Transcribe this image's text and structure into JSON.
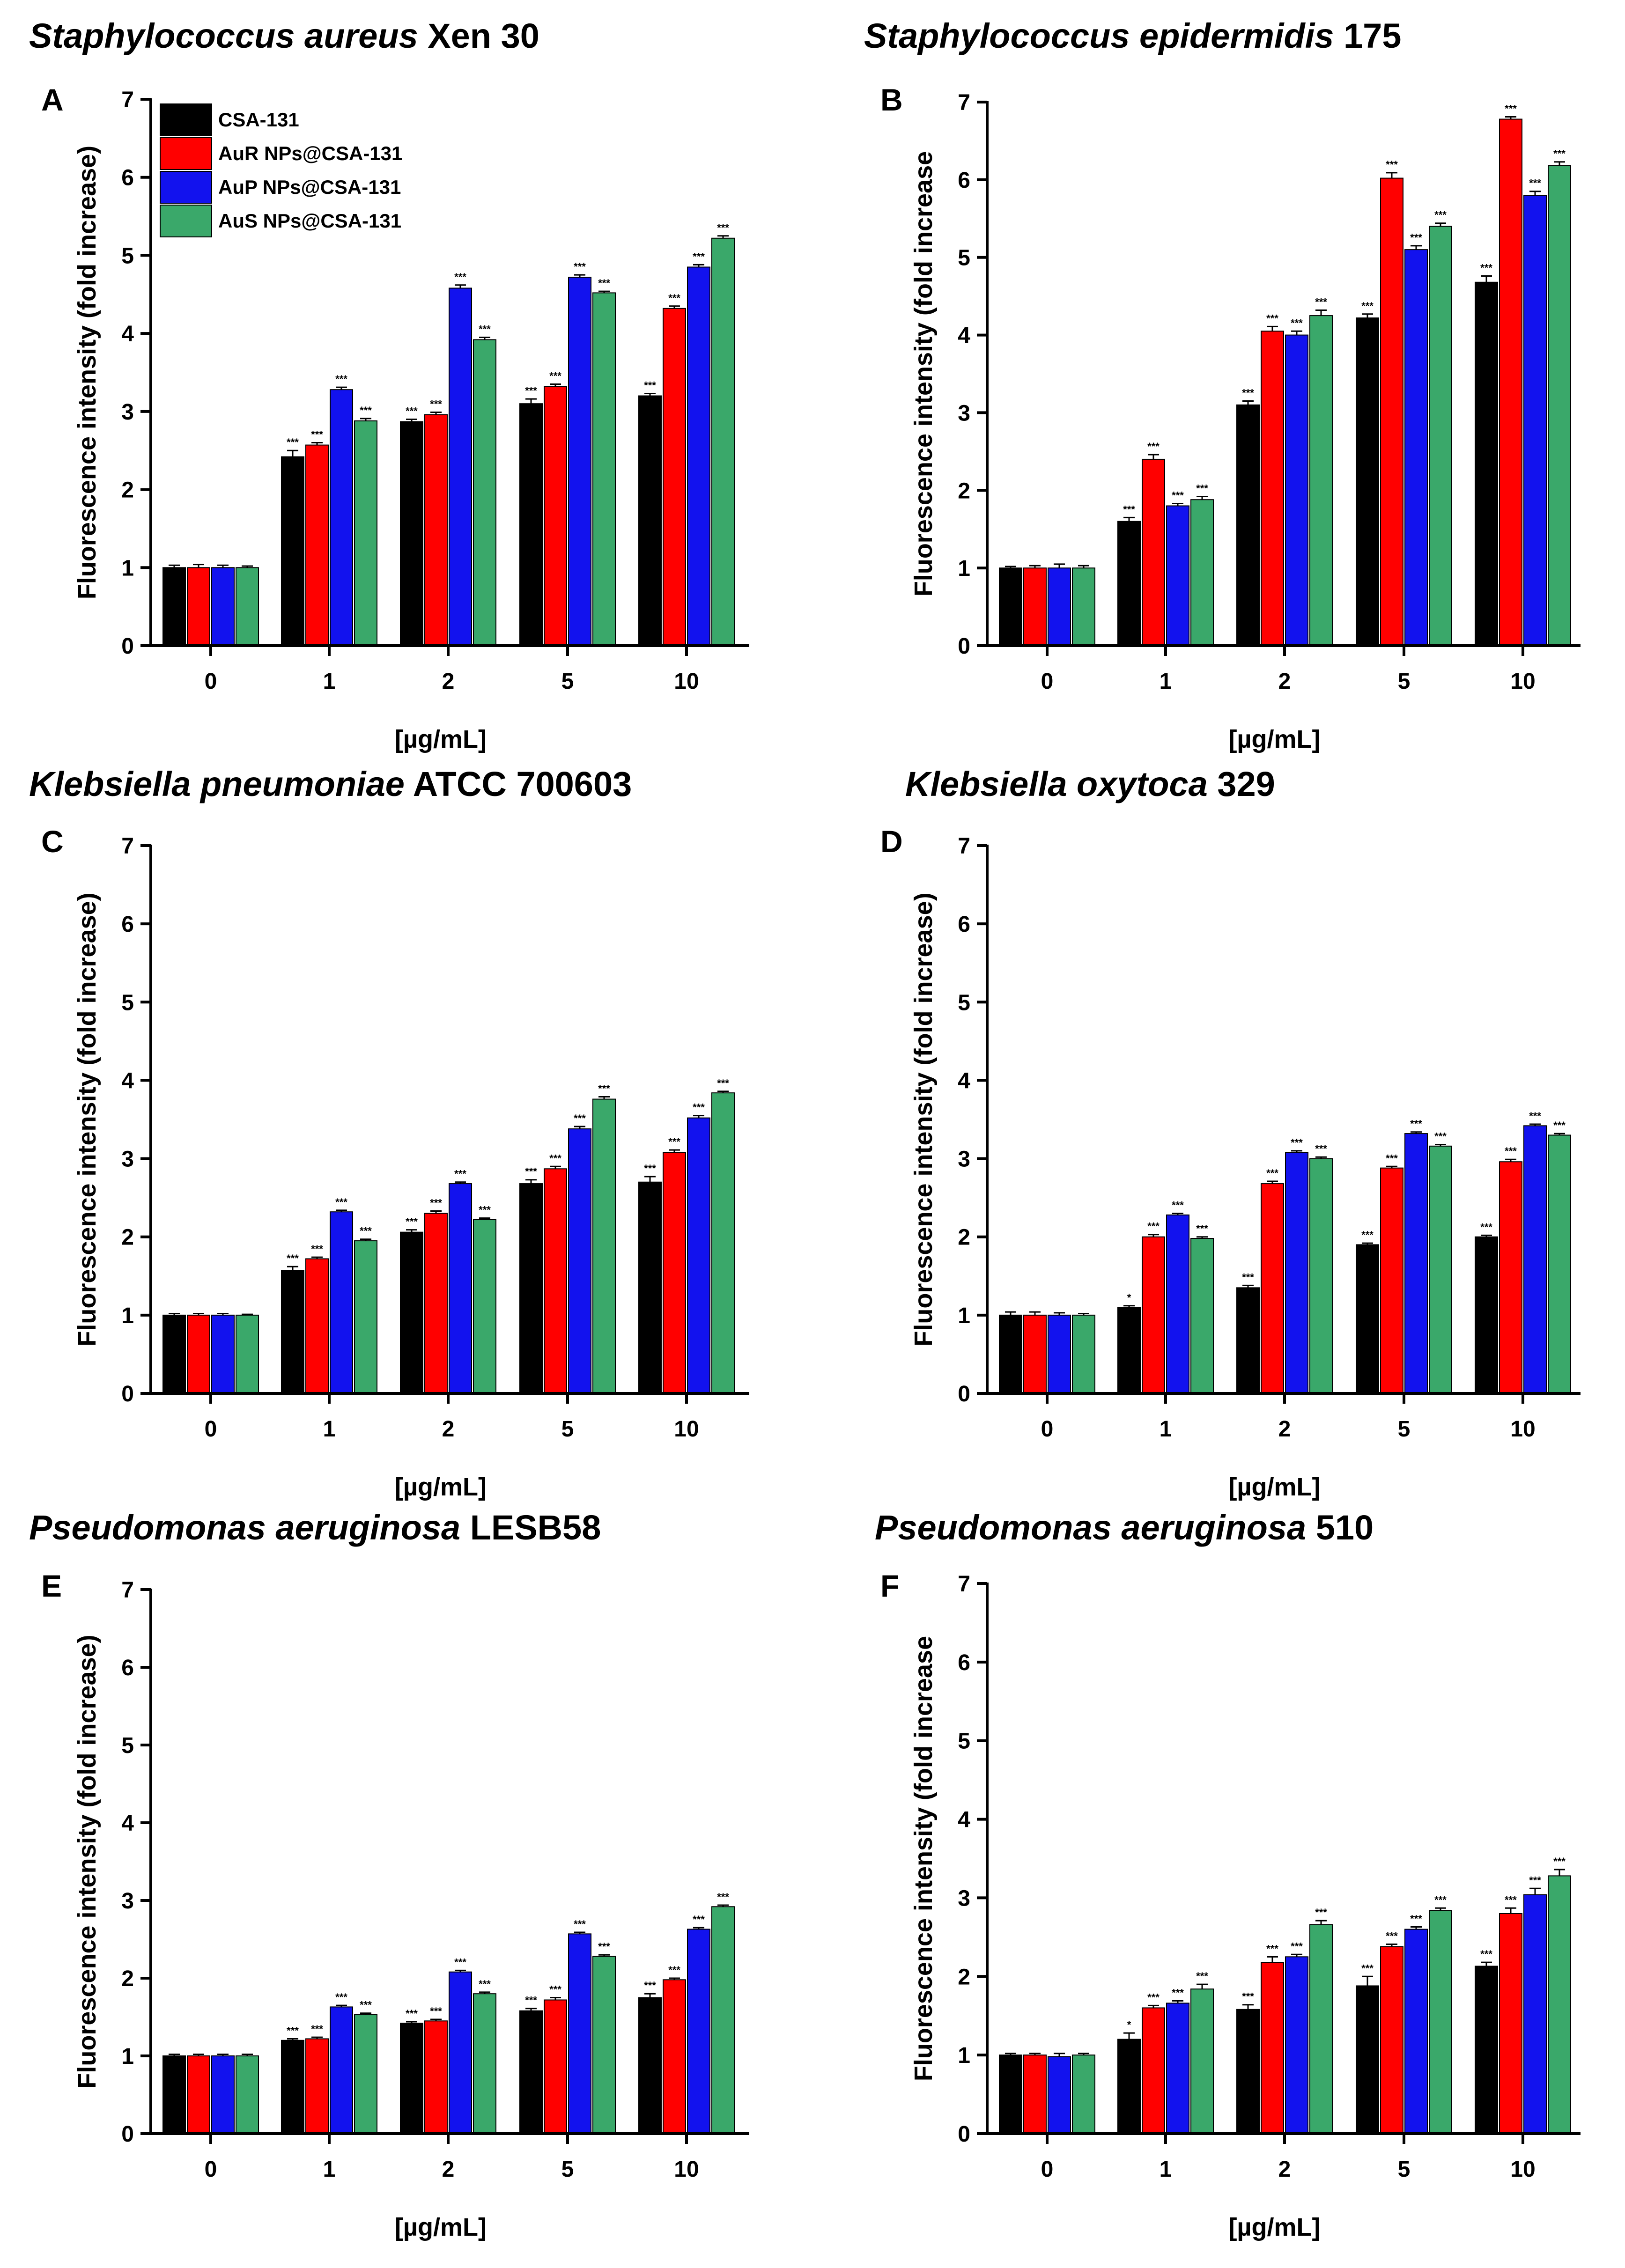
{
  "figure": {
    "legend": [
      "CSA-131",
      "AuR NPs@CSA-131",
      "AuP NPs@CSA-131",
      "AuS NPs@CSA-131"
    ],
    "series_colors": [
      "#000000",
      "#ff0000",
      "#1212ee",
      "#3aa86a"
    ]
  },
  "chart_data": [
    {
      "panel": "A",
      "type": "bar",
      "title_italic": "Staphylococcus aureus",
      "title_plain": "Xen 30",
      "categories": [
        "0",
        "1",
        "2",
        "5",
        "10"
      ],
      "xlabel": "[µg/mL]",
      "ylabel": "Fluorescence intensity (fold increase)",
      "ylim": [
        0,
        7
      ],
      "yticks": [
        "0",
        "1",
        "2",
        "3",
        "4",
        "5",
        "6",
        "7"
      ],
      "series": [
        {
          "name": "CSA-131",
          "values": [
            1.0,
            2.42,
            2.87,
            3.1,
            3.2
          ],
          "errors": [
            0.03,
            0.08,
            0.03,
            0.06,
            0.03
          ],
          "sig": [
            "",
            "***",
            "***",
            "***",
            "***"
          ]
        },
        {
          "name": "AuR NPs@CSA-131",
          "values": [
            1.0,
            2.57,
            2.96,
            3.32,
            4.32
          ],
          "errors": [
            0.04,
            0.03,
            0.03,
            0.03,
            0.03
          ],
          "sig": [
            "",
            "***",
            "***",
            "***",
            "***"
          ]
        },
        {
          "name": "AuP NPs@CSA-131",
          "values": [
            1.0,
            3.28,
            4.58,
            4.72,
            4.85
          ],
          "errors": [
            0.03,
            0.03,
            0.04,
            0.03,
            0.03
          ],
          "sig": [
            "",
            "***",
            "***",
            "***",
            "***"
          ]
        },
        {
          "name": "AuS NPs@CSA-131",
          "values": [
            1.0,
            2.88,
            3.92,
            4.52,
            5.22
          ],
          "errors": [
            0.02,
            0.03,
            0.03,
            0.02,
            0.03
          ],
          "sig": [
            "",
            "***",
            "***",
            "***",
            "***"
          ]
        }
      ]
    },
    {
      "panel": "B",
      "type": "bar",
      "title_italic": "Staphylococcus epidermidis",
      "title_plain": "175",
      "categories": [
        "0",
        "1",
        "2",
        "5",
        "10"
      ],
      "xlabel": "[µg/mL]",
      "ylabel": "Fluorescence intensity (fold increase",
      "ylim": [
        0,
        7
      ],
      "yticks": [
        "0",
        "1",
        "2",
        "3",
        "4",
        "5",
        "6",
        "7"
      ],
      "series": [
        {
          "name": "CSA-131",
          "values": [
            1.0,
            1.6,
            3.1,
            4.22,
            4.68
          ],
          "errors": [
            0.02,
            0.05,
            0.05,
            0.05,
            0.08
          ],
          "sig": [
            "",
            "***",
            "***",
            "***",
            "***"
          ]
        },
        {
          "name": "AuR NPs@CSA-131",
          "values": [
            1.0,
            2.4,
            4.05,
            6.02,
            6.78
          ],
          "errors": [
            0.03,
            0.06,
            0.06,
            0.07,
            0.03
          ],
          "sig": [
            "",
            "***",
            "***",
            "***",
            "***"
          ]
        },
        {
          "name": "AuP NPs@CSA-131",
          "values": [
            1.0,
            1.8,
            4.0,
            5.1,
            5.8
          ],
          "errors": [
            0.05,
            0.03,
            0.05,
            0.05,
            0.05
          ],
          "sig": [
            "",
            "***",
            "***",
            "***",
            "***"
          ]
        },
        {
          "name": "AuS NPs@CSA-131",
          "values": [
            1.0,
            1.88,
            4.25,
            5.4,
            6.18
          ],
          "errors": [
            0.03,
            0.04,
            0.07,
            0.04,
            0.05
          ],
          "sig": [
            "",
            "***",
            "***",
            "***",
            "***"
          ]
        }
      ]
    },
    {
      "panel": "C",
      "type": "bar",
      "title_italic": "Klebsiella pneumoniae",
      "title_plain": "ATCC 700603",
      "categories": [
        "0",
        "1",
        "2",
        "5",
        "10"
      ],
      "xlabel": "[µg/mL]",
      "ylabel": "Fluorescence intensity (fold increase)",
      "ylim": [
        0,
        7
      ],
      "yticks": [
        "0",
        "1",
        "2",
        "3",
        "4",
        "5",
        "6",
        "7"
      ],
      "series": [
        {
          "name": "CSA-131",
          "values": [
            1.0,
            1.57,
            2.06,
            2.68,
            2.7
          ],
          "errors": [
            0.02,
            0.05,
            0.03,
            0.05,
            0.07
          ],
          "sig": [
            "",
            "***",
            "***",
            "***",
            "***"
          ]
        },
        {
          "name": "AuR NPs@CSA-131",
          "values": [
            1.0,
            1.72,
            2.3,
            2.87,
            3.08
          ],
          "errors": [
            0.02,
            0.02,
            0.03,
            0.03,
            0.03
          ],
          "sig": [
            "",
            "***",
            "***",
            "***",
            "***"
          ]
        },
        {
          "name": "AuP NPs@CSA-131",
          "values": [
            1.0,
            2.32,
            2.68,
            3.38,
            3.52
          ],
          "errors": [
            0.02,
            0.02,
            0.02,
            0.03,
            0.03
          ],
          "sig": [
            "",
            "***",
            "***",
            "***",
            "***"
          ]
        },
        {
          "name": "AuS NPs@CSA-131",
          "values": [
            1.0,
            1.95,
            2.22,
            3.76,
            3.84
          ],
          "errors": [
            0.01,
            0.02,
            0.02,
            0.03,
            0.02
          ],
          "sig": [
            "",
            "***",
            "***",
            "***",
            "***"
          ]
        }
      ]
    },
    {
      "panel": "D",
      "type": "bar",
      "title_italic": "Klebsiella oxytoca",
      "title_plain": "329",
      "categories": [
        "0",
        "1",
        "2",
        "5",
        "10"
      ],
      "xlabel": "[µg/mL]",
      "ylabel": "Fluorescence intensity (fold increase)",
      "ylim": [
        0,
        7
      ],
      "yticks": [
        "0",
        "1",
        "2",
        "3",
        "4",
        "5",
        "6",
        "7"
      ],
      "series": [
        {
          "name": "CSA-131",
          "values": [
            1.0,
            1.1,
            1.35,
            1.9,
            2.0
          ],
          "errors": [
            0.04,
            0.02,
            0.03,
            0.02,
            0.02
          ],
          "sig": [
            "",
            "*",
            "***",
            "***",
            "***"
          ]
        },
        {
          "name": "AuR NPs@CSA-131",
          "values": [
            1.0,
            2.0,
            2.68,
            2.88,
            2.96
          ],
          "errors": [
            0.04,
            0.03,
            0.03,
            0.02,
            0.03
          ],
          "sig": [
            "",
            "***",
            "***",
            "***",
            "***"
          ]
        },
        {
          "name": "AuP NPs@CSA-131",
          "values": [
            1.0,
            2.28,
            3.08,
            3.32,
            3.42
          ],
          "errors": [
            0.03,
            0.02,
            0.02,
            0.02,
            0.02
          ],
          "sig": [
            "",
            "***",
            "***",
            "***",
            "***"
          ]
        },
        {
          "name": "AuS NPs@CSA-131",
          "values": [
            1.0,
            1.98,
            3.0,
            3.16,
            3.3
          ],
          "errors": [
            0.02,
            0.02,
            0.02,
            0.02,
            0.02
          ],
          "sig": [
            "",
            "***",
            "***",
            "***",
            "***"
          ]
        }
      ]
    },
    {
      "panel": "E",
      "type": "bar",
      "title_italic": "Pseudomonas aeruginosa",
      "title_plain": "LESB58",
      "categories": [
        "0",
        "1",
        "2",
        "5",
        "10"
      ],
      "xlabel": "[µg/mL]",
      "ylabel": "Fluorescence intensity (fold increase)",
      "ylim": [
        0,
        7
      ],
      "yticks": [
        "0",
        "1",
        "2",
        "3",
        "4",
        "5",
        "6",
        "7"
      ],
      "series": [
        {
          "name": "CSA-131",
          "values": [
            1.0,
            1.2,
            1.42,
            1.58,
            1.75
          ],
          "errors": [
            0.02,
            0.02,
            0.02,
            0.03,
            0.05
          ],
          "sig": [
            "",
            "***",
            "***",
            "***",
            "***"
          ]
        },
        {
          "name": "AuR NPs@CSA-131",
          "values": [
            1.0,
            1.22,
            1.45,
            1.72,
            1.98
          ],
          "errors": [
            0.02,
            0.02,
            0.02,
            0.03,
            0.02
          ],
          "sig": [
            "",
            "***",
            "***",
            "***",
            "***"
          ]
        },
        {
          "name": "AuP NPs@CSA-131",
          "values": [
            1.0,
            1.63,
            2.08,
            2.57,
            2.63
          ],
          "errors": [
            0.02,
            0.02,
            0.02,
            0.02,
            0.02
          ],
          "sig": [
            "",
            "***",
            "***",
            "***",
            "***"
          ]
        },
        {
          "name": "AuS NPs@CSA-131",
          "values": [
            1.0,
            1.53,
            1.8,
            2.28,
            2.92
          ],
          "errors": [
            0.02,
            0.02,
            0.02,
            0.02,
            0.02
          ],
          "sig": [
            "",
            "***",
            "***",
            "***",
            "***"
          ]
        }
      ]
    },
    {
      "panel": "F",
      "type": "bar",
      "title_italic": "Pseudomonas aeruginosa",
      "title_plain": "510",
      "categories": [
        "0",
        "1",
        "2",
        "5",
        "10"
      ],
      "xlabel": "[µg/mL]",
      "ylabel": "Fluorescence intensity (fold increase",
      "ylim": [
        0,
        7
      ],
      "yticks": [
        "0",
        "1",
        "2",
        "3",
        "4",
        "5",
        "6",
        "7"
      ],
      "series": [
        {
          "name": "CSA-131",
          "values": [
            1.0,
            1.2,
            1.58,
            1.88,
            2.13
          ],
          "errors": [
            0.02,
            0.08,
            0.06,
            0.12,
            0.05
          ],
          "sig": [
            "",
            "*",
            "***",
            "***",
            "***"
          ]
        },
        {
          "name": "AuR NPs@CSA-131",
          "values": [
            1.0,
            1.6,
            2.18,
            2.38,
            2.8
          ],
          "errors": [
            0.02,
            0.03,
            0.07,
            0.03,
            0.07
          ],
          "sig": [
            "",
            "***",
            "***",
            "***",
            "***"
          ]
        },
        {
          "name": "AuP NPs@CSA-131",
          "values": [
            0.98,
            1.66,
            2.25,
            2.6,
            3.04
          ],
          "errors": [
            0.04,
            0.03,
            0.03,
            0.03,
            0.08
          ],
          "sig": [
            "",
            "***",
            "***",
            "***",
            "***"
          ]
        },
        {
          "name": "AuS NPs@CSA-131",
          "values": [
            1.0,
            1.84,
            2.66,
            2.84,
            3.28
          ],
          "errors": [
            0.02,
            0.06,
            0.05,
            0.03,
            0.08
          ],
          "sig": [
            "",
            "***",
            "***",
            "***",
            "***"
          ]
        }
      ]
    }
  ]
}
